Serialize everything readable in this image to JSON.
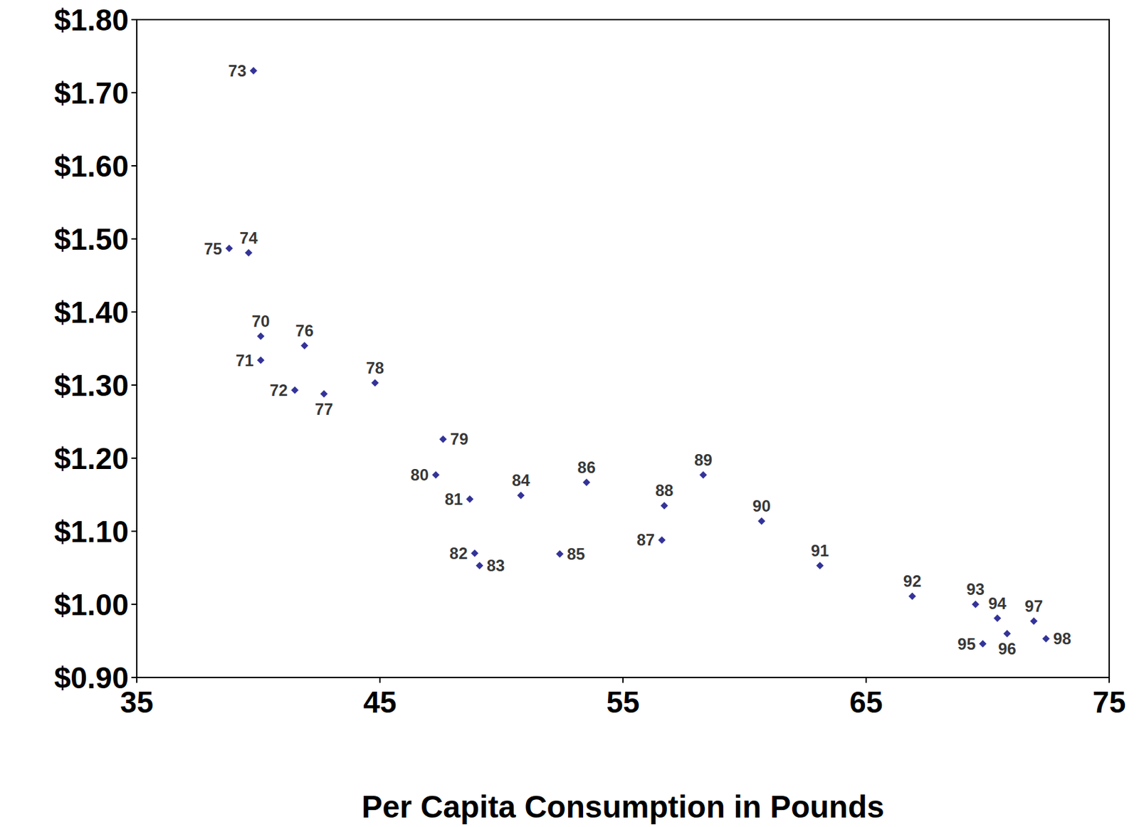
{
  "chart_data": {
    "type": "scatter",
    "x_label": "Per Capita Consumption in Pounds",
    "point_labels": [
      "70",
      "71",
      "72",
      "73",
      "74",
      "75",
      "76",
      "77",
      "78",
      "79",
      "80",
      "81",
      "82",
      "83",
      "84",
      "85",
      "86",
      "87",
      "88",
      "89",
      "90",
      "91",
      "92",
      "93",
      "94",
      "95",
      "96",
      "97",
      "98"
    ],
    "x": [
      40.1,
      40.1,
      41.5,
      39.8,
      39.6,
      38.8,
      41.9,
      42.7,
      44.8,
      47.6,
      47.3,
      48.7,
      48.9,
      49.1,
      50.8,
      52.4,
      53.5,
      56.6,
      56.7,
      58.3,
      60.7,
      63.1,
      66.9,
      69.5,
      70.4,
      69.8,
      70.8,
      71.9,
      72.4
    ],
    "values": [
      1.367,
      1.334,
      1.293,
      1.73,
      1.481,
      1.487,
      1.354,
      1.288,
      1.303,
      1.226,
      1.177,
      1.144,
      1.07,
      1.053,
      1.149,
      1.069,
      1.167,
      1.088,
      1.135,
      1.177,
      1.114,
      1.053,
      1.011,
      1.0,
      0.981,
      0.946,
      0.96,
      0.977,
      0.953
    ],
    "color": "#000080",
    "marker": "diamond",
    "grid": false,
    "xlim": [
      35,
      75
    ],
    "xticks": [
      35,
      45,
      55,
      65,
      75
    ],
    "ylim": [
      0.9,
      1.8
    ],
    "yticks": [
      {
        "value": 0.9,
        "label": "$0.90"
      },
      {
        "value": 1.0,
        "label": "$1.00"
      },
      {
        "value": 1.1,
        "label": "$1.10"
      },
      {
        "value": 1.2,
        "label": "$1.20"
      },
      {
        "value": 1.3,
        "label": "$1.30"
      },
      {
        "value": 1.4,
        "label": "$1.40"
      },
      {
        "value": 1.5,
        "label": "$1.50"
      },
      {
        "value": 1.6,
        "label": "$1.60"
      },
      {
        "value": 1.7,
        "label": "$1.70"
      },
      {
        "value": 1.8,
        "label": "$1.80"
      }
    ]
  }
}
